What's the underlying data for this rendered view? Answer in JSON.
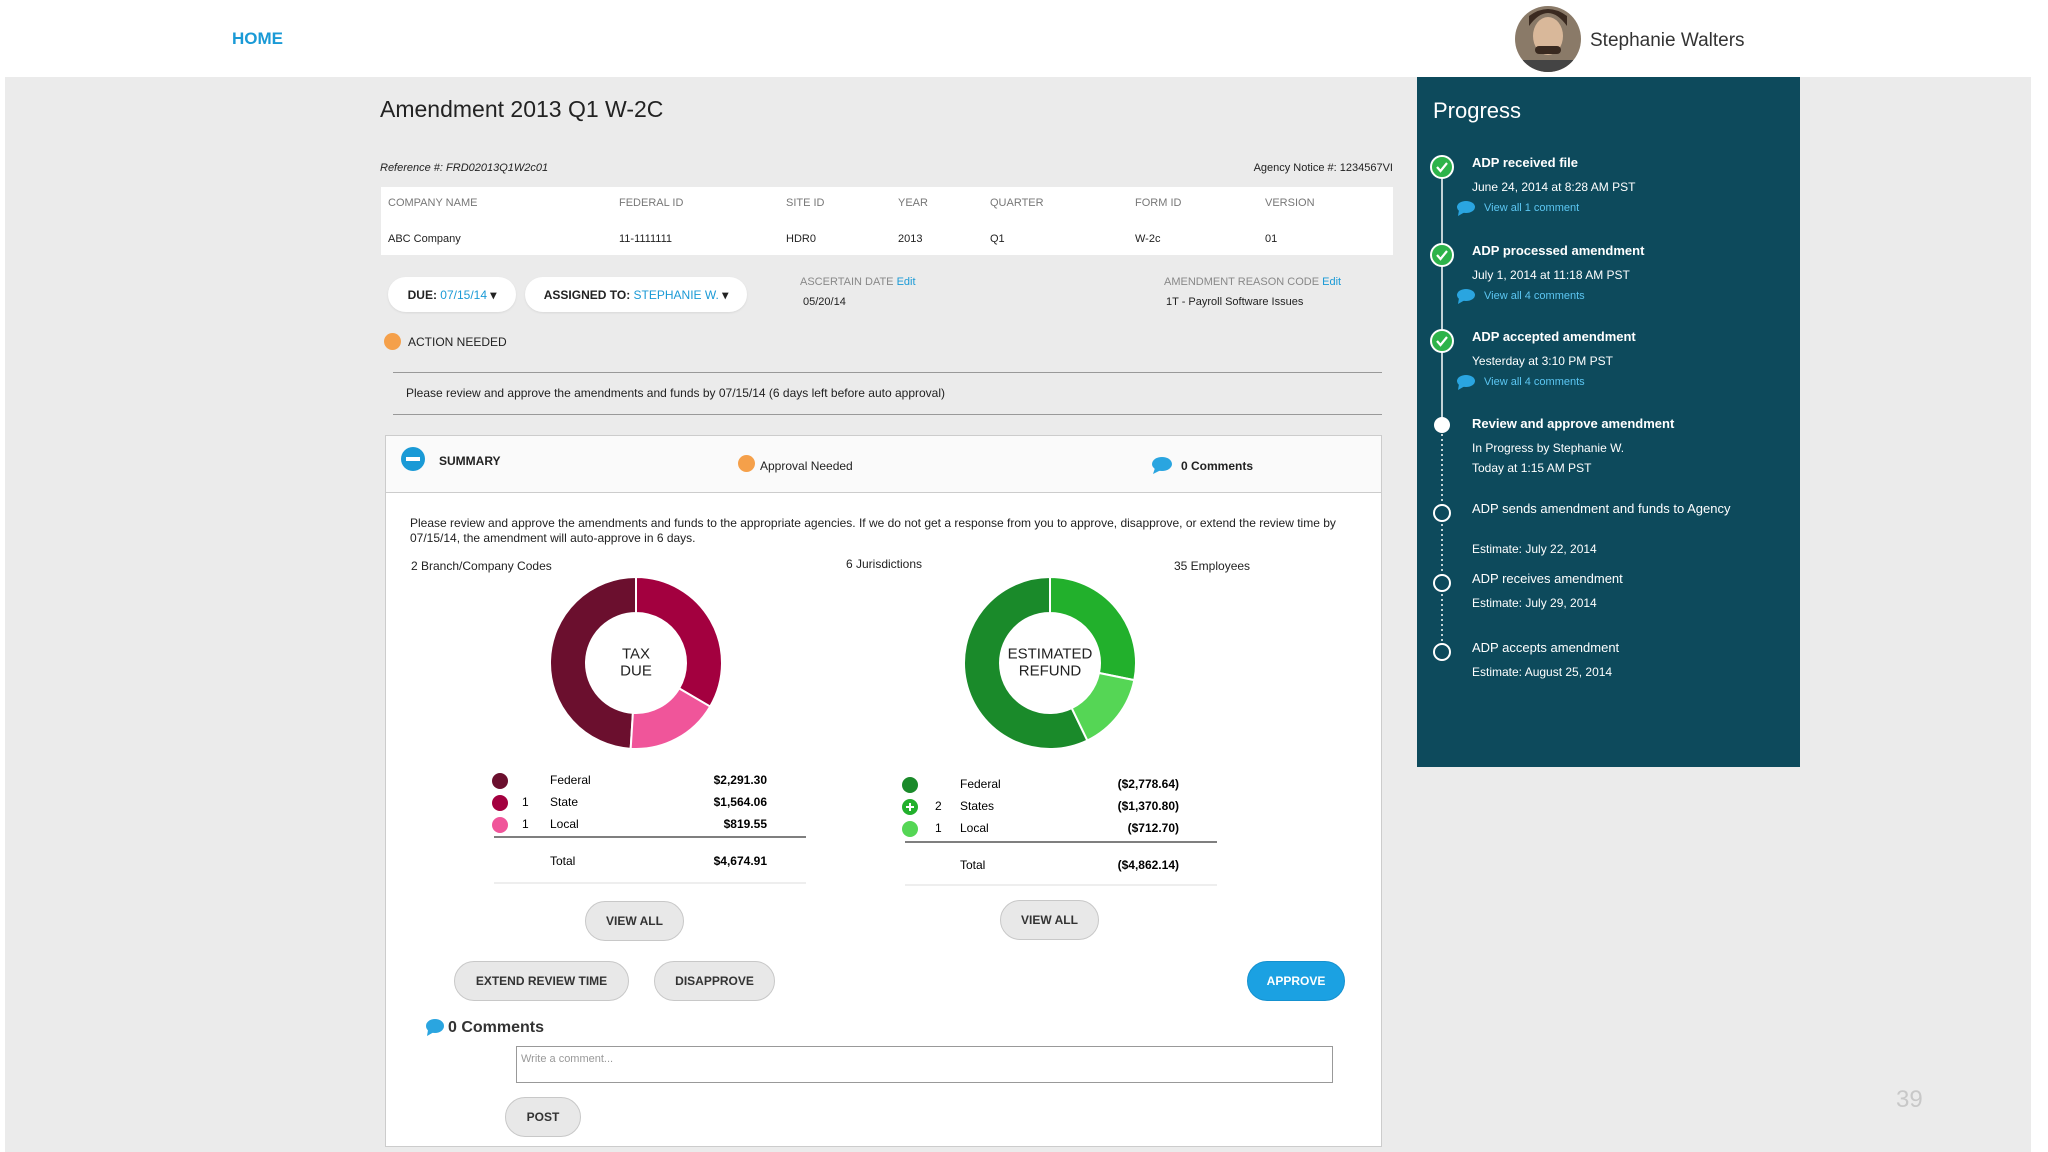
{
  "nav": {
    "home": "HOME",
    "user": "Stephanie Walters"
  },
  "header": {
    "title": "Amendment 2013 Q1 W-2C",
    "reference": "Reference #: FRD02013Q1W2c01",
    "agency_notice": "Agency Notice #: 1234567VI"
  },
  "info_table": {
    "columns": [
      "COMPANY NAME",
      "FEDERAL ID",
      "SITE ID",
      "YEAR",
      "QUARTER",
      "FORM ID",
      "VERSION"
    ],
    "row": [
      "ABC Company",
      "11-1111111",
      "HDR0",
      "2013",
      "Q1",
      "W-2c",
      "01"
    ]
  },
  "due": {
    "label": "DUE:",
    "value": "07/15/14"
  },
  "assigned": {
    "label": "ASSIGNED TO:",
    "value": "STEPHANIE W."
  },
  "ascertain": {
    "label": "ASCERTAIN DATE",
    "edit": "Edit",
    "value": "05/20/14"
  },
  "reason": {
    "label": "AMENDMENT REASON CODE",
    "edit": "Edit",
    "value": "1T - Payroll Software Issues"
  },
  "action": {
    "status": "ACTION NEEDED",
    "message": "Please review and approve the amendments and funds by 07/15/14 (6 days left before auto approval)"
  },
  "summary": {
    "title": "SUMMARY",
    "status": "Approval Needed",
    "comments": "0 Comments",
    "text": "Please review and approve the amendments and funds to the appropriate agencies. If we do not get a response from you to approve, disapprove, or extend the review time by 07/15/14, the amendment will auto-approve in 6 days.",
    "stats": [
      "2 Branch/Company Codes",
      "6 Jurisdictions",
      "35 Employees"
    ],
    "charts": [
      {
        "type": "pie",
        "center_lines": [
          "TAX",
          "DUE"
        ],
        "categories": [
          "Federal",
          "State",
          "Local"
        ],
        "counts": [
          null,
          1,
          1
        ],
        "values": [
          2291.3,
          1564.06,
          819.55
        ],
        "value_labels": [
          "$2,291.30",
          "$1,564.06",
          "$819.55"
        ],
        "colors": [
          "#6b0f2e",
          "#a3003f",
          "#f0559a"
        ],
        "total_label": "Total",
        "total": "$4,674.91",
        "view_all": "VIEW ALL"
      },
      {
        "type": "pie",
        "center_lines": [
          "ESTIMATED",
          "REFUND"
        ],
        "categories": [
          "Federal",
          "States",
          "Local"
        ],
        "counts": [
          null,
          2,
          1
        ],
        "values": [
          -2778.64,
          -1370.8,
          -712.7
        ],
        "value_labels": [
          "($2,778.64)",
          "($1,370.80)",
          "($712.70)"
        ],
        "colors": [
          "#1a8a2a",
          "#22b02c",
          "#55d655"
        ],
        "total_label": "Total",
        "total": "($4,862.14)",
        "view_all": "VIEW ALL"
      }
    ],
    "buttons": {
      "extend": "EXTEND REVIEW TIME",
      "disapprove": "DISAPPROVE",
      "approve": "APPROVE"
    },
    "comments_title": "0 Comments",
    "comment_placeholder": "Write a comment...",
    "post": "POST"
  },
  "progress": {
    "title": "Progress",
    "steps": [
      {
        "title": "ADP received file",
        "time": "June 24, 2014 at 8:28 AM PST",
        "link": "View all 1 comment",
        "state": "done"
      },
      {
        "title": "ADP processed amendment",
        "time": "July 1, 2014 at 11:18 AM PST",
        "link": "View all 4 comments",
        "state": "done"
      },
      {
        "title": "ADP accepted amendment",
        "time": "Yesterday at 3:10 PM PST",
        "link": "View all 4 comments",
        "state": "done"
      },
      {
        "title": "Review and approve amendment",
        "time": "In Progress by Stephanie W.",
        "link2": "Today at 1:15 AM PST",
        "state": "current"
      },
      {
        "title": "ADP sends amendment and funds to Agency",
        "time": "Estimate: July 22, 2014",
        "state": "pending"
      },
      {
        "title": "ADP receives amendment",
        "time": "Estimate: July 29, 2014",
        "state": "pending"
      },
      {
        "title": "ADP accepts amendment",
        "time": "Estimate: August 25, 2014",
        "state": "pending"
      }
    ]
  },
  "page_number": "39"
}
